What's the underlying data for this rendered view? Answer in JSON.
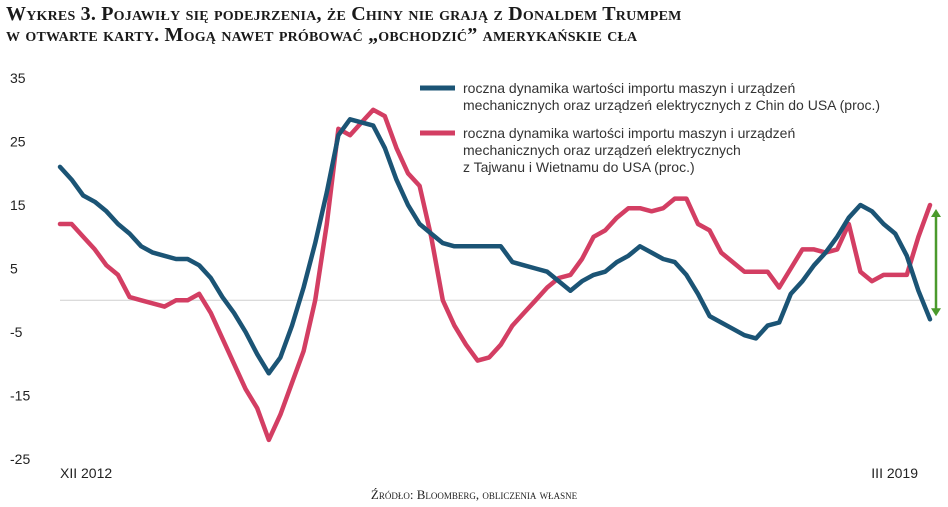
{
  "header": {
    "title_line1": "Wykres 3. Pojawiły się podejrzenia, że Chiny nie grają z Donaldem Trumpem",
    "title_line2": "w otwarte karty. Mogą nawet próbować „obchodzić” amerykańskie cła"
  },
  "source": "Źródło: Bloomberg, obliczenia własne",
  "colors": {
    "china": "#1b5475",
    "taiwan_vietnam": "#d33e63",
    "arrow": "#4a9a2c",
    "zero_line": "#cfcfcf"
  },
  "chart_data": {
    "type": "line",
    "title": "Wykres 3. Pojawiły się podejrzenia, że Chiny nie grają z Donaldem Trumpem w otwarte karty. Mogą nawet próbować „obchodzić” amerykańskie cła",
    "xlabel": "",
    "ylabel": "",
    "ylim": [
      -25,
      35
    ],
    "yticks": [
      "35",
      "25",
      "15",
      "5",
      "-5",
      "-15",
      "-25"
    ],
    "x_start_label": "XII 2012",
    "x_end_label": "III 2019",
    "x_range": [
      "2012-12",
      "2019-03"
    ],
    "grid": false,
    "legend_position": "top-right",
    "series": [
      {
        "name": "roczna dynamika wartości importu maszyn i urządzeń mechanicznych oraz urządzeń elektrycznych z Chin do USA (proc.)",
        "legend_lines": [
          "roczna dynamika wartości importu maszyn i urządzeń",
          "mechanicznych oraz urządzeń elektrycznych z Chin do USA (proc.)"
        ],
        "color_key": "china",
        "points": [
          [
            "2012-12",
            21
          ],
          [
            "2013-01",
            19
          ],
          [
            "2013-02",
            16.5
          ],
          [
            "2013-03",
            15.5
          ],
          [
            "2013-04",
            14
          ],
          [
            "2013-05",
            12
          ],
          [
            "2013-06",
            10.5
          ],
          [
            "2013-07",
            8.5
          ],
          [
            "2013-08",
            7.5
          ],
          [
            "2013-09",
            7
          ],
          [
            "2013-10",
            6.5
          ],
          [
            "2013-11",
            6.5
          ],
          [
            "2013-12",
            5.5
          ],
          [
            "2014-01",
            3.5
          ],
          [
            "2014-02",
            0.5
          ],
          [
            "2014-03",
            -2
          ],
          [
            "2014-04",
            -5
          ],
          [
            "2014-05",
            -8.5
          ],
          [
            "2014-06",
            -11.5
          ],
          [
            "2014-07",
            -9
          ],
          [
            "2014-08",
            -4
          ],
          [
            "2014-09",
            2
          ],
          [
            "2014-10",
            9
          ],
          [
            "2014-11",
            17
          ],
          [
            "2014-12",
            26
          ],
          [
            "2015-01",
            28.5
          ],
          [
            "2015-02",
            28
          ],
          [
            "2015-03",
            27.5
          ],
          [
            "2015-04",
            24
          ],
          [
            "2015-05",
            19
          ],
          [
            "2015-06",
            15
          ],
          [
            "2015-07",
            12
          ],
          [
            "2015-08",
            10.5
          ],
          [
            "2015-09",
            9
          ],
          [
            "2015-10",
            8.5
          ],
          [
            "2015-11",
            8.5
          ],
          [
            "2015-12",
            8.5
          ],
          [
            "2016-01",
            8.5
          ],
          [
            "2016-02",
            8.5
          ],
          [
            "2016-03",
            6
          ],
          [
            "2016-04",
            5.5
          ],
          [
            "2016-05",
            5
          ],
          [
            "2016-06",
            4.5
          ],
          [
            "2016-07",
            3
          ],
          [
            "2016-08",
            1.5
          ],
          [
            "2016-09",
            3
          ],
          [
            "2016-10",
            4
          ],
          [
            "2016-11",
            4.5
          ],
          [
            "2016-12",
            6
          ],
          [
            "2017-01",
            7
          ],
          [
            "2017-02",
            8.5
          ],
          [
            "2017-03",
            7.5
          ],
          [
            "2017-04",
            6.5
          ],
          [
            "2017-05",
            6
          ],
          [
            "2017-06",
            4
          ],
          [
            "2017-07",
            1
          ],
          [
            "2017-08",
            -2.5
          ],
          [
            "2017-09",
            -3.5
          ],
          [
            "2017-10",
            -4.5
          ],
          [
            "2017-11",
            -5.5
          ],
          [
            "2017-12",
            -6
          ],
          [
            "2018-01",
            -4
          ],
          [
            "2018-02",
            -3.5
          ],
          [
            "2018-03",
            1
          ],
          [
            "2018-04",
            3
          ],
          [
            "2018-05",
            5.5
          ],
          [
            "2018-06",
            7.5
          ],
          [
            "2018-07",
            10
          ],
          [
            "2018-08",
            13
          ],
          [
            "2018-09",
            15
          ],
          [
            "2018-10",
            14
          ],
          [
            "2018-11",
            12
          ],
          [
            "2018-12",
            10.5
          ],
          [
            "2019-01",
            7
          ],
          [
            "2019-02",
            1.5
          ],
          [
            "2019-03",
            -3
          ]
        ]
      },
      {
        "name": "roczna dynamika wartości importu maszyn i urządzeń mechanicznych oraz urządzeń elektrycznych z Tajwanu i Wietnamu do USA (proc.)",
        "legend_lines": [
          "roczna dynamika wartości importu maszyn i urządzeń",
          "mechanicznych oraz urządzeń elektrycznych",
          "z Tajwanu i Wietnamu do USA (proc.)"
        ],
        "color_key": "taiwan_vietnam",
        "points": [
          [
            "2012-12",
            12
          ],
          [
            "2013-01",
            12
          ],
          [
            "2013-02",
            10
          ],
          [
            "2013-03",
            8
          ],
          [
            "2013-04",
            5.5
          ],
          [
            "2013-05",
            4
          ],
          [
            "2013-06",
            0.5
          ],
          [
            "2013-07",
            0
          ],
          [
            "2013-08",
            -0.5
          ],
          [
            "2013-09",
            -1
          ],
          [
            "2013-10",
            0
          ],
          [
            "2013-11",
            0
          ],
          [
            "2013-12",
            1
          ],
          [
            "2014-01",
            -2
          ],
          [
            "2014-02",
            -6
          ],
          [
            "2014-03",
            -10
          ],
          [
            "2014-04",
            -14
          ],
          [
            "2014-05",
            -17
          ],
          [
            "2014-06",
            -22
          ],
          [
            "2014-07",
            -18
          ],
          [
            "2014-08",
            -13
          ],
          [
            "2014-09",
            -8
          ],
          [
            "2014-10",
            0
          ],
          [
            "2014-11",
            12
          ],
          [
            "2014-12",
            27
          ],
          [
            "2015-01",
            26
          ],
          [
            "2015-02",
            28
          ],
          [
            "2015-03",
            30
          ],
          [
            "2015-04",
            29
          ],
          [
            "2015-05",
            24
          ],
          [
            "2015-06",
            20
          ],
          [
            "2015-07",
            18
          ],
          [
            "2015-08",
            10
          ],
          [
            "2015-09",
            0
          ],
          [
            "2015-10",
            -4
          ],
          [
            "2015-11",
            -7
          ],
          [
            "2015-12",
            -9.5
          ],
          [
            "2016-01",
            -9
          ],
          [
            "2016-02",
            -7
          ],
          [
            "2016-03",
            -4
          ],
          [
            "2016-04",
            -2
          ],
          [
            "2016-05",
            0
          ],
          [
            "2016-06",
            2
          ],
          [
            "2016-07",
            3.5
          ],
          [
            "2016-08",
            4
          ],
          [
            "2016-09",
            6.5
          ],
          [
            "2016-10",
            10
          ],
          [
            "2016-11",
            11
          ],
          [
            "2016-12",
            13
          ],
          [
            "2017-01",
            14.5
          ],
          [
            "2017-02",
            14.5
          ],
          [
            "2017-03",
            14
          ],
          [
            "2017-04",
            14.5
          ],
          [
            "2017-05",
            16
          ],
          [
            "2017-06",
            16
          ],
          [
            "2017-07",
            12
          ],
          [
            "2017-08",
            11
          ],
          [
            "2017-09",
            7.5
          ],
          [
            "2017-10",
            6
          ],
          [
            "2017-11",
            4.5
          ],
          [
            "2017-12",
            4.5
          ],
          [
            "2018-01",
            4.5
          ],
          [
            "2018-02",
            2
          ],
          [
            "2018-03",
            5
          ],
          [
            "2018-04",
            8
          ],
          [
            "2018-05",
            8
          ],
          [
            "2018-06",
            7.5
          ],
          [
            "2018-07",
            8
          ],
          [
            "2018-08",
            12
          ],
          [
            "2018-09",
            4.5
          ],
          [
            "2018-10",
            3
          ],
          [
            "2018-11",
            4
          ],
          [
            "2018-12",
            4
          ],
          [
            "2019-01",
            4
          ],
          [
            "2019-02",
            10
          ],
          [
            "2019-03",
            15
          ]
        ]
      }
    ]
  }
}
